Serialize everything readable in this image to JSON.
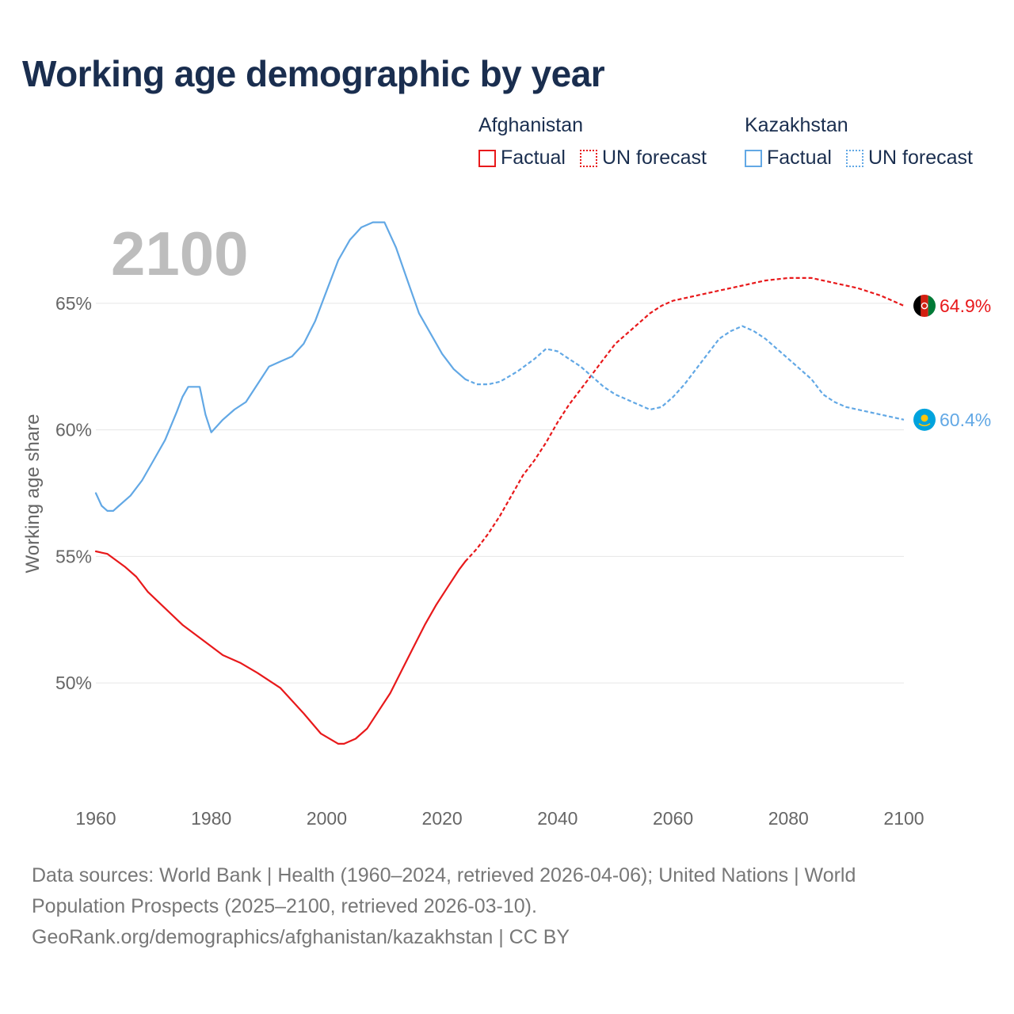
{
  "title": "Working age demographic by year",
  "legend": {
    "groups": [
      {
        "name": "Afghanistan",
        "factual_label": "Factual",
        "forecast_label": "UN forecast",
        "color": "#e8191b"
      },
      {
        "name": "Kazakhstan",
        "factual_label": "Factual",
        "forecast_label": "UN forecast",
        "color": "#62a8e5"
      }
    ]
  },
  "current_year": "2100",
  "y_axis_label": "Working age share",
  "end_labels": {
    "afghanistan": "64.9%",
    "kazakhstan": "60.4%"
  },
  "footer": {
    "line1": "Data sources: World Bank | Health (1960–2024, retrieved 2026-04-06); United Nations | World",
    "line2": "Population Prospects (2025–2100, retrieved 2026-03-10).",
    "line3": "GeoRank.org/demographics/afghanistan/kazakhstan | CC BY"
  },
  "chart_data": {
    "type": "line",
    "title": "Working age demographic by year",
    "xlabel": "",
    "ylabel": "Working age share",
    "xlim": [
      1960,
      2100
    ],
    "ylim": [
      46,
      69
    ],
    "x_ticks": [
      1960,
      1980,
      2000,
      2020,
      2040,
      2060,
      2080,
      2100
    ],
    "x_tick_labels": [
      "1960",
      "1980",
      "2000",
      "2020",
      "2040",
      "2060",
      "2080",
      "2100"
    ],
    "y_ticks": [
      50,
      55,
      60,
      65
    ],
    "y_tick_labels": [
      "50%",
      "55%",
      "60%",
      "65%"
    ],
    "grid": true,
    "forecast_start": 2024,
    "series": [
      {
        "name": "Afghanistan",
        "color": "#e8191b",
        "points": [
          [
            1960,
            55.2
          ],
          [
            1962,
            55.1
          ],
          [
            1965,
            54.6
          ],
          [
            1967,
            54.2
          ],
          [
            1969,
            53.6
          ],
          [
            1975,
            52.3
          ],
          [
            1982,
            51.1
          ],
          [
            1985,
            50.8
          ],
          [
            1988,
            50.4
          ],
          [
            1992,
            49.8
          ],
          [
            1996,
            48.8
          ],
          [
            1999,
            48.0
          ],
          [
            2002,
            47.6
          ],
          [
            2003,
            47.6
          ],
          [
            2005,
            47.8
          ],
          [
            2007,
            48.2
          ],
          [
            2009,
            48.9
          ],
          [
            2011,
            49.6
          ],
          [
            2013,
            50.5
          ],
          [
            2015,
            51.4
          ],
          [
            2017,
            52.3
          ],
          [
            2019,
            53.1
          ],
          [
            2021,
            53.8
          ],
          [
            2023,
            54.5
          ],
          [
            2024,
            54.8
          ],
          [
            2026,
            55.3
          ],
          [
            2028,
            55.9
          ],
          [
            2030,
            56.6
          ],
          [
            2032,
            57.4
          ],
          [
            2034,
            58.2
          ],
          [
            2036,
            58.8
          ],
          [
            2038,
            59.5
          ],
          [
            2040,
            60.3
          ],
          [
            2042,
            61.0
          ],
          [
            2044,
            61.6
          ],
          [
            2046,
            62.2
          ],
          [
            2048,
            62.8
          ],
          [
            2050,
            63.4
          ],
          [
            2052,
            63.8
          ],
          [
            2054,
            64.2
          ],
          [
            2056,
            64.6
          ],
          [
            2058,
            64.9
          ],
          [
            2060,
            65.1
          ],
          [
            2064,
            65.3
          ],
          [
            2068,
            65.5
          ],
          [
            2072,
            65.7
          ],
          [
            2076,
            65.9
          ],
          [
            2080,
            66.0
          ],
          [
            2084,
            66.0
          ],
          [
            2088,
            65.8
          ],
          [
            2092,
            65.6
          ],
          [
            2096,
            65.3
          ],
          [
            2100,
            64.9
          ]
        ]
      },
      {
        "name": "Kazakhstan",
        "color": "#62a8e5",
        "points": [
          [
            1960,
            57.5
          ],
          [
            1961,
            57.0
          ],
          [
            1962,
            56.8
          ],
          [
            1963,
            56.8
          ],
          [
            1964,
            57.0
          ],
          [
            1966,
            57.4
          ],
          [
            1968,
            58.0
          ],
          [
            1970,
            58.8
          ],
          [
            1972,
            59.6
          ],
          [
            1974,
            60.7
          ],
          [
            1975,
            61.3
          ],
          [
            1976,
            61.7
          ],
          [
            1978,
            61.7
          ],
          [
            1979,
            60.6
          ],
          [
            1980,
            59.9
          ],
          [
            1982,
            60.4
          ],
          [
            1984,
            60.8
          ],
          [
            1986,
            61.1
          ],
          [
            1988,
            61.8
          ],
          [
            1990,
            62.5
          ],
          [
            1992,
            62.7
          ],
          [
            1994,
            62.9
          ],
          [
            1996,
            63.4
          ],
          [
            1998,
            64.3
          ],
          [
            2000,
            65.5
          ],
          [
            2002,
            66.7
          ],
          [
            2004,
            67.5
          ],
          [
            2006,
            68.0
          ],
          [
            2008,
            68.2
          ],
          [
            2010,
            68.2
          ],
          [
            2012,
            67.2
          ],
          [
            2014,
            65.9
          ],
          [
            2016,
            64.6
          ],
          [
            2018,
            63.8
          ],
          [
            2020,
            63.0
          ],
          [
            2022,
            62.4
          ],
          [
            2024,
            62.0
          ],
          [
            2026,
            61.8
          ],
          [
            2028,
            61.8
          ],
          [
            2030,
            61.9
          ],
          [
            2033,
            62.3
          ],
          [
            2036,
            62.8
          ],
          [
            2038,
            63.2
          ],
          [
            2040,
            63.1
          ],
          [
            2042,
            62.8
          ],
          [
            2044,
            62.5
          ],
          [
            2046,
            62.1
          ],
          [
            2048,
            61.7
          ],
          [
            2050,
            61.4
          ],
          [
            2052,
            61.2
          ],
          [
            2054,
            61.0
          ],
          [
            2056,
            60.8
          ],
          [
            2058,
            60.9
          ],
          [
            2060,
            61.3
          ],
          [
            2062,
            61.8
          ],
          [
            2064,
            62.4
          ],
          [
            2066,
            63.0
          ],
          [
            2068,
            63.6
          ],
          [
            2070,
            63.9
          ],
          [
            2072,
            64.1
          ],
          [
            2074,
            63.9
          ],
          [
            2076,
            63.6
          ],
          [
            2078,
            63.2
          ],
          [
            2080,
            62.8
          ],
          [
            2082,
            62.4
          ],
          [
            2084,
            62.0
          ],
          [
            2086,
            61.4
          ],
          [
            2088,
            61.1
          ],
          [
            2090,
            60.9
          ],
          [
            2092,
            60.8
          ],
          [
            2094,
            60.7
          ],
          [
            2096,
            60.6
          ],
          [
            2098,
            60.5
          ],
          [
            2100,
            60.4
          ]
        ]
      }
    ]
  }
}
